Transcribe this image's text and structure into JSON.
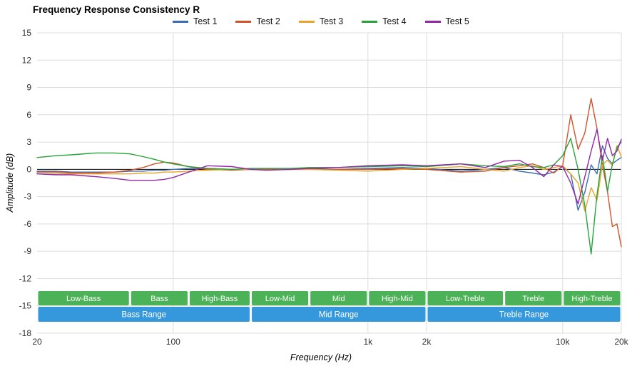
{
  "title": "Frequency Response Consistency R",
  "axes": {
    "x_title": "Frequency (Hz)",
    "y_title": "Amplitude (dB)",
    "y_ticks": [
      15,
      12,
      9,
      6,
      3,
      0,
      -3,
      -6,
      -9,
      -12,
      -15,
      -18
    ],
    "x_ticks": [
      {
        "f": 20,
        "label": "20",
        "grid": false
      },
      {
        "f": 100,
        "label": "100",
        "grid": true
      },
      {
        "f": 1000,
        "label": "1k",
        "grid": true
      },
      {
        "f": 2000,
        "label": "2k",
        "grid": true
      },
      {
        "f": 10000,
        "label": "10k",
        "grid": true
      },
      {
        "f": 20000,
        "label": "20k",
        "grid": true
      }
    ]
  },
  "style": {
    "grid_color": "#dcdcdc",
    "zero_line_color": "#000000",
    "tick_color": "#333333",
    "band_green": "#4bb257",
    "band_blue": "#3598dc",
    "band_text_color": "#ffffff"
  },
  "chart_data": {
    "type": "line",
    "title": "Frequency Response Consistency R",
    "xlabel": "Frequency (Hz)",
    "ylabel": "Amplitude (dB)",
    "x_scale": "log",
    "xlim": [
      20,
      20000
    ],
    "ylim": [
      -18,
      15
    ],
    "grid": true,
    "legend_position": "top",
    "x": [
      20,
      25,
      30,
      40,
      50,
      60,
      70,
      80,
      90,
      100,
      120,
      150,
      200,
      250,
      300,
      400,
      500,
      700,
      1000,
      1500,
      2000,
      3000,
      4000,
      5000,
      6000,
      7000,
      8000,
      9000,
      10000,
      11000,
      12000,
      13000,
      14000,
      15000,
      16000,
      17000,
      18000,
      19000,
      20000
    ],
    "series": [
      {
        "name": "Test 1",
        "color": "#3c6db4",
        "values": [
          -0.2,
          -0.2,
          -0.3,
          -0.3,
          -0.3,
          -0.2,
          -0.2,
          -0.1,
          -0.1,
          0.0,
          0.1,
          0.1,
          0.0,
          0.0,
          0.0,
          0.0,
          0.1,
          0.0,
          0.1,
          0.2,
          0.1,
          -0.2,
          0.0,
          0.2,
          -0.2,
          -0.4,
          -0.6,
          -0.3,
          0.3,
          -0.5,
          -4.5,
          -2.5,
          0.5,
          -0.5,
          2.6,
          1.2,
          0.6,
          1.0,
          1.3
        ]
      },
      {
        "name": "Test 2",
        "color": "#d2532b",
        "values": [
          -0.3,
          -0.3,
          -0.4,
          -0.4,
          -0.3,
          -0.1,
          0.2,
          0.6,
          0.8,
          0.7,
          0.3,
          0.0,
          -0.1,
          0.0,
          0.0,
          0.0,
          0.0,
          0.0,
          0.0,
          0.1,
          0.0,
          -0.3,
          -0.2,
          0.2,
          0.4,
          0.6,
          0.2,
          -0.4,
          0.4,
          6.0,
          2.2,
          4.0,
          7.8,
          4.5,
          0.5,
          -2.5,
          -6.3,
          -6.0,
          -8.5
        ]
      },
      {
        "name": "Test 3",
        "color": "#eca32a",
        "values": [
          -0.5,
          -0.5,
          -0.5,
          -0.5,
          -0.5,
          -0.5,
          -0.4,
          -0.4,
          -0.3,
          -0.3,
          -0.2,
          -0.1,
          0.0,
          0.0,
          -0.1,
          0.0,
          0.0,
          -0.1,
          -0.2,
          0.0,
          0.1,
          0.3,
          0.0,
          -0.2,
          0.2,
          0.4,
          0.0,
          0.2,
          0.4,
          -0.5,
          -1.5,
          -4.6,
          -2.0,
          -3.4,
          0.5,
          1.0,
          0.4,
          2.6,
          1.4
        ]
      },
      {
        "name": "Test 4",
        "color": "#26a339",
        "values": [
          1.3,
          1.5,
          1.6,
          1.8,
          1.8,
          1.7,
          1.4,
          1.1,
          0.8,
          0.6,
          0.3,
          0.1,
          0.0,
          0.1,
          0.1,
          0.1,
          0.2,
          0.2,
          0.3,
          0.4,
          0.3,
          0.6,
          0.4,
          0.3,
          0.6,
          0.3,
          0.2,
          0.5,
          1.5,
          3.4,
          0.0,
          -4.0,
          -9.3,
          -2.8,
          1.5,
          -2.4,
          0.6,
          2.4,
          3.0
        ]
      },
      {
        "name": "Test 5",
        "color": "#9228a8",
        "values": [
          -0.5,
          -0.6,
          -0.6,
          -0.8,
          -1.0,
          -1.2,
          -1.2,
          -1.2,
          -1.1,
          -0.9,
          -0.3,
          0.4,
          0.3,
          0.0,
          -0.1,
          0.0,
          0.1,
          0.2,
          0.4,
          0.5,
          0.4,
          0.6,
          0.2,
          0.9,
          1.0,
          0.2,
          -0.8,
          0.5,
          0.3,
          -1.5,
          -3.8,
          -0.8,
          2.0,
          4.4,
          1.0,
          3.4,
          1.5,
          2.0,
          3.3
        ]
      }
    ],
    "frequency_bands": [
      {
        "label": "Low-Bass",
        "from": 20,
        "to": 60
      },
      {
        "label": "Bass",
        "from": 60,
        "to": 120
      },
      {
        "label": "High-Bass",
        "from": 120,
        "to": 250
      },
      {
        "label": "Low-Mid",
        "from": 250,
        "to": 500
      },
      {
        "label": "Mid",
        "from": 500,
        "to": 1000
      },
      {
        "label": "High-Mid",
        "from": 1000,
        "to": 2000
      },
      {
        "label": "Low-Treble",
        "from": 2000,
        "to": 5000
      },
      {
        "label": "Treble",
        "from": 5000,
        "to": 10000
      },
      {
        "label": "High-Treble",
        "from": 10000,
        "to": 20000
      }
    ],
    "frequency_ranges": [
      {
        "label": "Bass Range",
        "from": 20,
        "to": 250
      },
      {
        "label": "Mid Range",
        "from": 250,
        "to": 2000
      },
      {
        "label": "Treble Range",
        "from": 2000,
        "to": 20000
      }
    ]
  }
}
